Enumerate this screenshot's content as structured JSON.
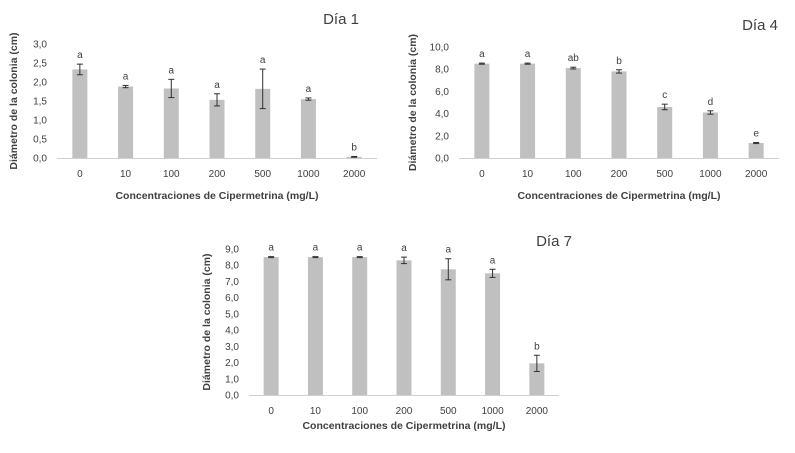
{
  "chart_data": [
    {
      "type": "bar",
      "title": "Día 1",
      "xlabel": "Concentraciones de Cipermetrina (mg/L)",
      "ylabel": "Diámetro de la colonia (cm)",
      "categories": [
        "0",
        "10",
        "100",
        "200",
        "500",
        "1000",
        "2000"
      ],
      "values": [
        2.33,
        1.88,
        1.83,
        1.53,
        1.82,
        1.55,
        0.03
      ],
      "errors": [
        0.14,
        0.03,
        0.24,
        0.16,
        0.52,
        0.03,
        0.01
      ],
      "letters": [
        "a",
        "a",
        "a",
        "a",
        "a",
        "a",
        "b"
      ],
      "ylim": [
        0,
        3
      ],
      "yticks": [
        "0,0",
        "0,5",
        "1,0",
        "1,5",
        "2,0",
        "2,5",
        "3,0"
      ],
      "grid": false
    },
    {
      "type": "bar",
      "title": "Día 4",
      "xlabel": "Concentraciones de Cipermetrina (mg/L)",
      "ylabel": "Diámetro de la colonia (cm)",
      "categories": [
        "0",
        "10",
        "100",
        "200",
        "500",
        "1000",
        "2000"
      ],
      "values": [
        8.5,
        8.5,
        8.1,
        7.8,
        4.6,
        4.1,
        1.35
      ],
      "errors": [
        0.05,
        0.05,
        0.08,
        0.15,
        0.25,
        0.15,
        0.05
      ],
      "letters": [
        "a",
        "a",
        "ab",
        "b",
        "c",
        "d",
        "e"
      ],
      "ylim": [
        0,
        10
      ],
      "yticks": [
        "0,0",
        "2,0",
        "4,0",
        "6,0",
        "8,0",
        "10,0"
      ],
      "grid": false
    },
    {
      "type": "bar",
      "title": "Día 7",
      "xlabel": "Concentraciones de Cipermetrina (mg/L)",
      "ylabel": "Diámetro de la colonia (cm)",
      "categories": [
        "0",
        "10",
        "100",
        "200",
        "500",
        "1000",
        "2000"
      ],
      "values": [
        8.5,
        8.5,
        8.5,
        8.3,
        7.75,
        7.5,
        1.95
      ],
      "errors": [
        0.03,
        0.03,
        0.03,
        0.2,
        0.65,
        0.25,
        0.5
      ],
      "letters": [
        "a",
        "a",
        "a",
        "a",
        "a",
        "a",
        "b"
      ],
      "ylim": [
        0,
        9
      ],
      "yticks": [
        "0,0",
        "1,0",
        "2,0",
        "3,0",
        "4,0",
        "5,0",
        "6,0",
        "7,0",
        "8,0",
        "9,0"
      ],
      "grid": false
    }
  ]
}
